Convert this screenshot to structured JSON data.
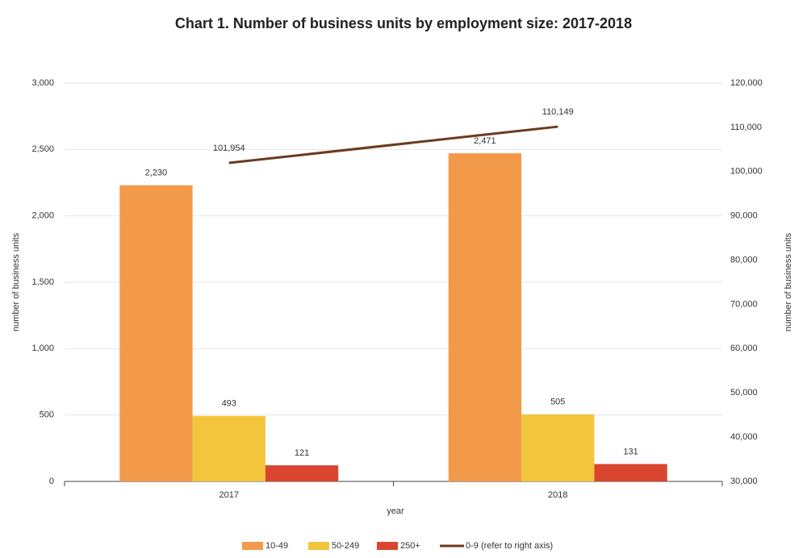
{
  "chart_data": {
    "type": "bar",
    "title": "Chart 1. Number of business units by employment size: 2017-2018",
    "x_label": "year",
    "y_label": "number of business units",
    "y2_label": "number of business units",
    "categories": [
      "2017",
      "2018"
    ],
    "series": [
      {
        "name": "10-49",
        "color": "#f39a4a",
        "values": [
          2230,
          2471
        ],
        "value_labels": [
          "2,230",
          "2,471"
        ]
      },
      {
        "name": "50-249",
        "color": "#f2c53d",
        "values": [
          493,
          505
        ],
        "value_labels": [
          "493",
          "505"
        ]
      },
      {
        "name": "250+",
        "color": "#d9452f",
        "values": [
          121,
          131
        ],
        "value_labels": [
          "121",
          "131"
        ]
      },
      {
        "name": "0-9 (refer to right axis)",
        "type": "line",
        "axis": "y2",
        "color": "#6b3a1e",
        "values": [
          101954,
          110149
        ],
        "value_labels": [
          "101,954",
          "110,149"
        ]
      }
    ],
    "ylim": [
      0,
      3000
    ],
    "yticks": [
      0,
      500,
      {
        "value": 1000,
        "label": "1,000"
      },
      {
        "value": 1500,
        "label": "1,500"
      },
      {
        "value": 2000,
        "label": "2,000"
      },
      {
        "value": 2500,
        "label": "2,500"
      },
      {
        "value": 3000,
        "label": "3,000"
      }
    ],
    "y2lim": [
      30000,
      120000
    ],
    "y2ticks": [
      {
        "value": 30000,
        "label": "30,000"
      },
      {
        "value": 40000,
        "label": "40,000"
      },
      {
        "value": 50000,
        "label": "50,000"
      },
      {
        "value": 60000,
        "label": "60,000"
      },
      {
        "value": 70000,
        "label": "70,000"
      },
      {
        "value": 80000,
        "label": "80,000"
      },
      {
        "value": 90000,
        "label": "90,000"
      },
      {
        "value": 100000,
        "label": "100,000"
      },
      {
        "value": 110000,
        "label": "110,000"
      },
      {
        "value": 120000,
        "label": "120,000"
      }
    ],
    "grid": true,
    "legend": "bottom"
  }
}
